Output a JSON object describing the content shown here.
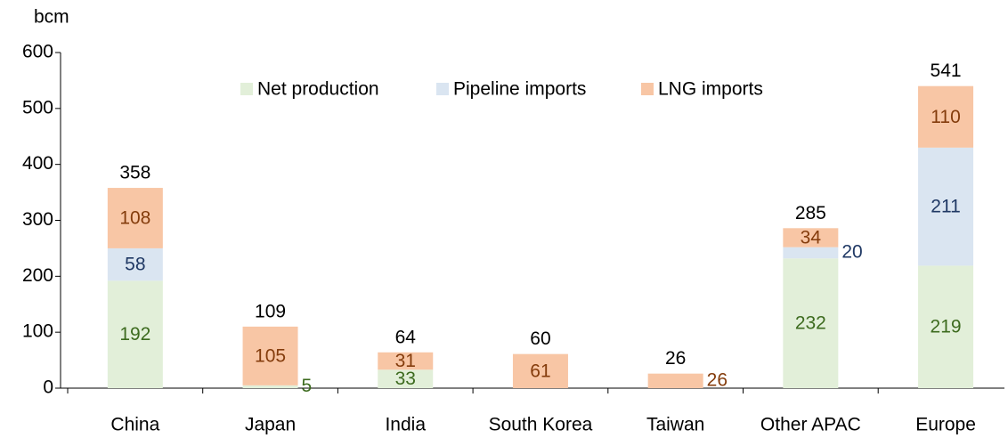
{
  "chart_data": {
    "type": "bar",
    "stacked": true,
    "y_label": "bcm",
    "categories": [
      "China",
      "Japan",
      "India",
      "South Korea",
      "Taiwan",
      "Other APAC",
      "Europe"
    ],
    "series": [
      {
        "name": "Net production",
        "color": "#e2efd9",
        "label_color": "#3d6b1f",
        "values": [
          192,
          5,
          33,
          null,
          null,
          232,
          219
        ]
      },
      {
        "name": "Pipeline imports",
        "color": "#dae5f1",
        "label_color": "#1f3864",
        "values": [
          58,
          null,
          null,
          null,
          null,
          20,
          211
        ]
      },
      {
        "name": "LNG imports",
        "color": "#f8c6a5",
        "label_color": "#843c0c",
        "values": [
          108,
          105,
          31,
          61,
          26,
          34,
          110
        ]
      }
    ],
    "totals": [
      358,
      109,
      64,
      60,
      26,
      285,
      541
    ],
    "ylim": [
      0,
      600
    ],
    "yticks": [
      0,
      100,
      200,
      300,
      400,
      500,
      600
    ],
    "legend": "top"
  }
}
